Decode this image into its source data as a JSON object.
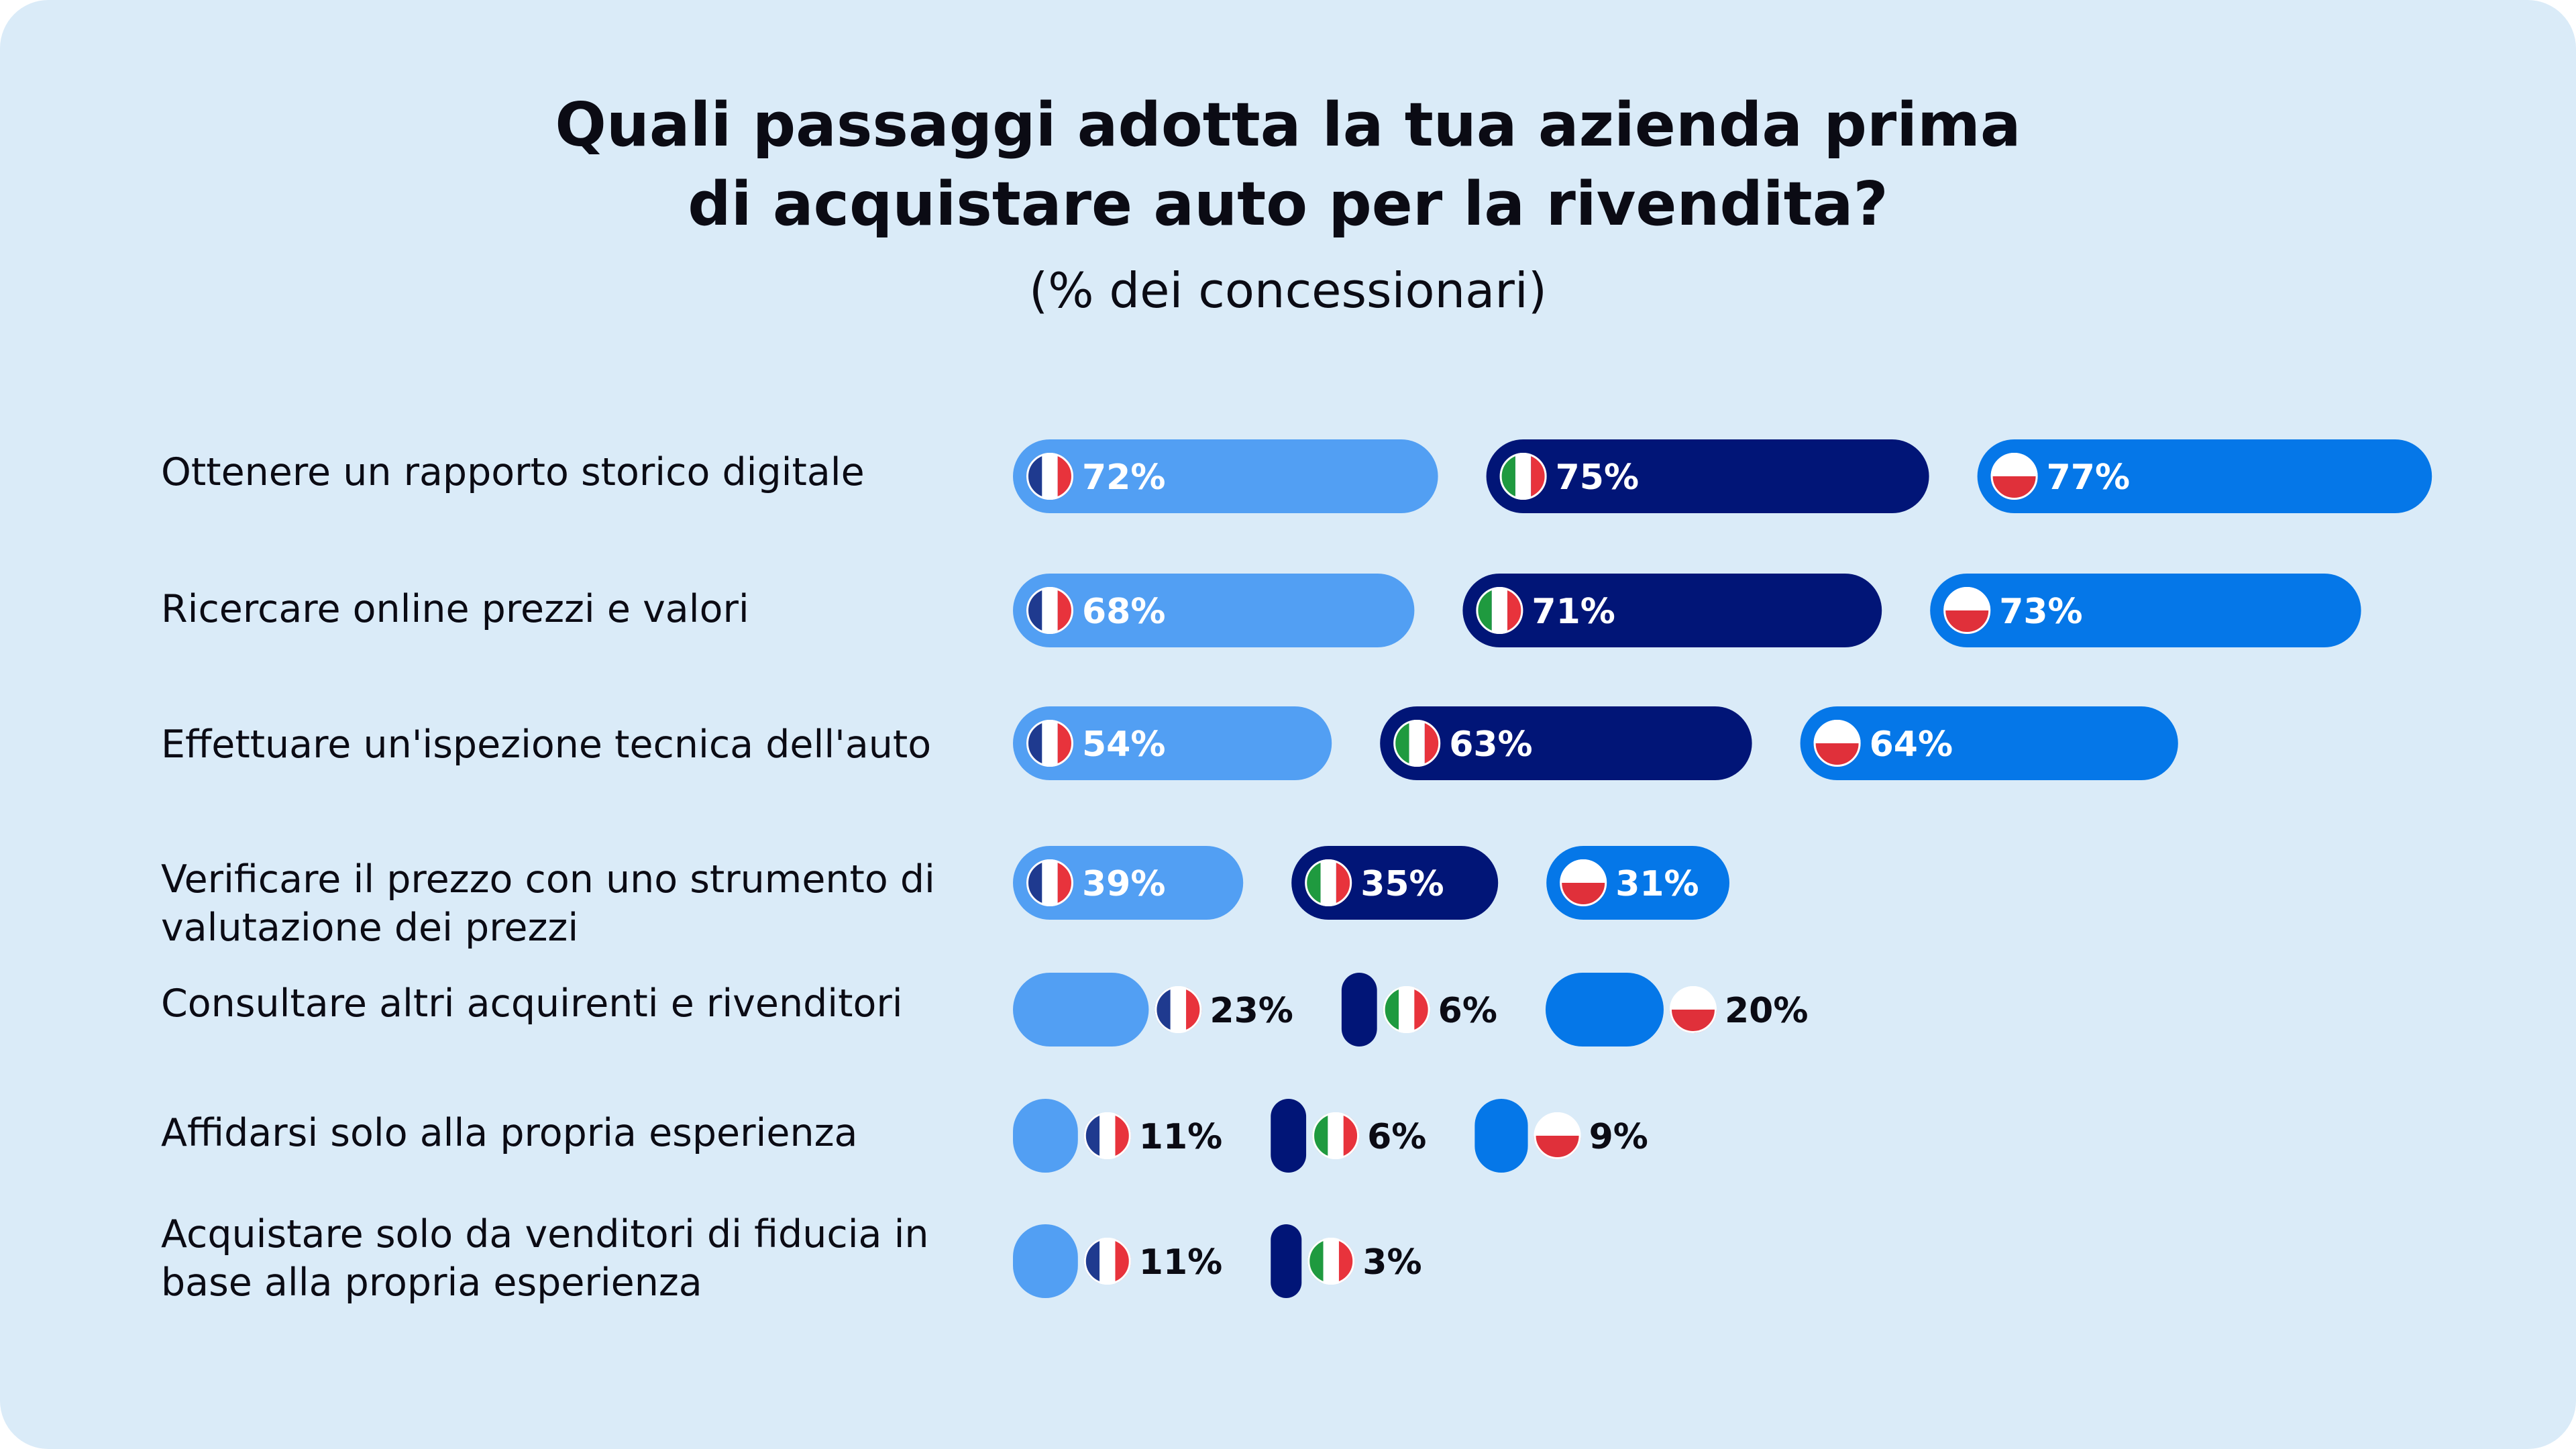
{
  "chart_data": {
    "type": "bar",
    "title_line1": "Quali passaggi adotta la tua azienda prima",
    "title_line2": "di acquistare auto per la rivendita?",
    "subtitle": "(% dei concessionari)",
    "series": [
      {
        "name": "France",
        "flag": "france-flag-icon",
        "color": "#529ff3"
      },
      {
        "name": "Italy",
        "flag": "italy-flag-icon",
        "color": "#011577"
      },
      {
        "name": "Poland",
        "flag": "poland-flag-icon",
        "color": "#0577e8"
      }
    ],
    "categories": [
      {
        "label": "Ottenere un rapporto storico digitale",
        "values": [
          72,
          75,
          77
        ]
      },
      {
        "label": "Ricercare online prezzi e valori",
        "values": [
          68,
          71,
          73
        ]
      },
      {
        "label": "Effettuare un'ispezione tecnica dell'auto",
        "values": [
          54,
          63,
          64
        ]
      },
      {
        "label": "Verificare il prezzo con uno strumento di valutazione dei prezzi",
        "values": [
          39,
          35,
          31
        ]
      },
      {
        "label": "Consultare altri acquirenti e rivenditori",
        "values": [
          23,
          6,
          20
        ]
      },
      {
        "label": "Affidarsi solo alla propria esperienza",
        "values": [
          11,
          6,
          9
        ]
      },
      {
        "label": "Acquistare solo da venditori di fiducia in base alla propria esperienza",
        "values": [
          11,
          3,
          null
        ]
      }
    ],
    "value_suffix": "%",
    "ylim": [
      0,
      100
    ]
  },
  "colors": {
    "background": "#daebf8",
    "france_blue": "#1f3a8f",
    "france_red": "#e8333c",
    "italy_green": "#1f9a3f",
    "italy_red": "#e8333c",
    "poland_red": "#e0303a",
    "white": "#ffffff",
    "text": "#0b0b14"
  }
}
